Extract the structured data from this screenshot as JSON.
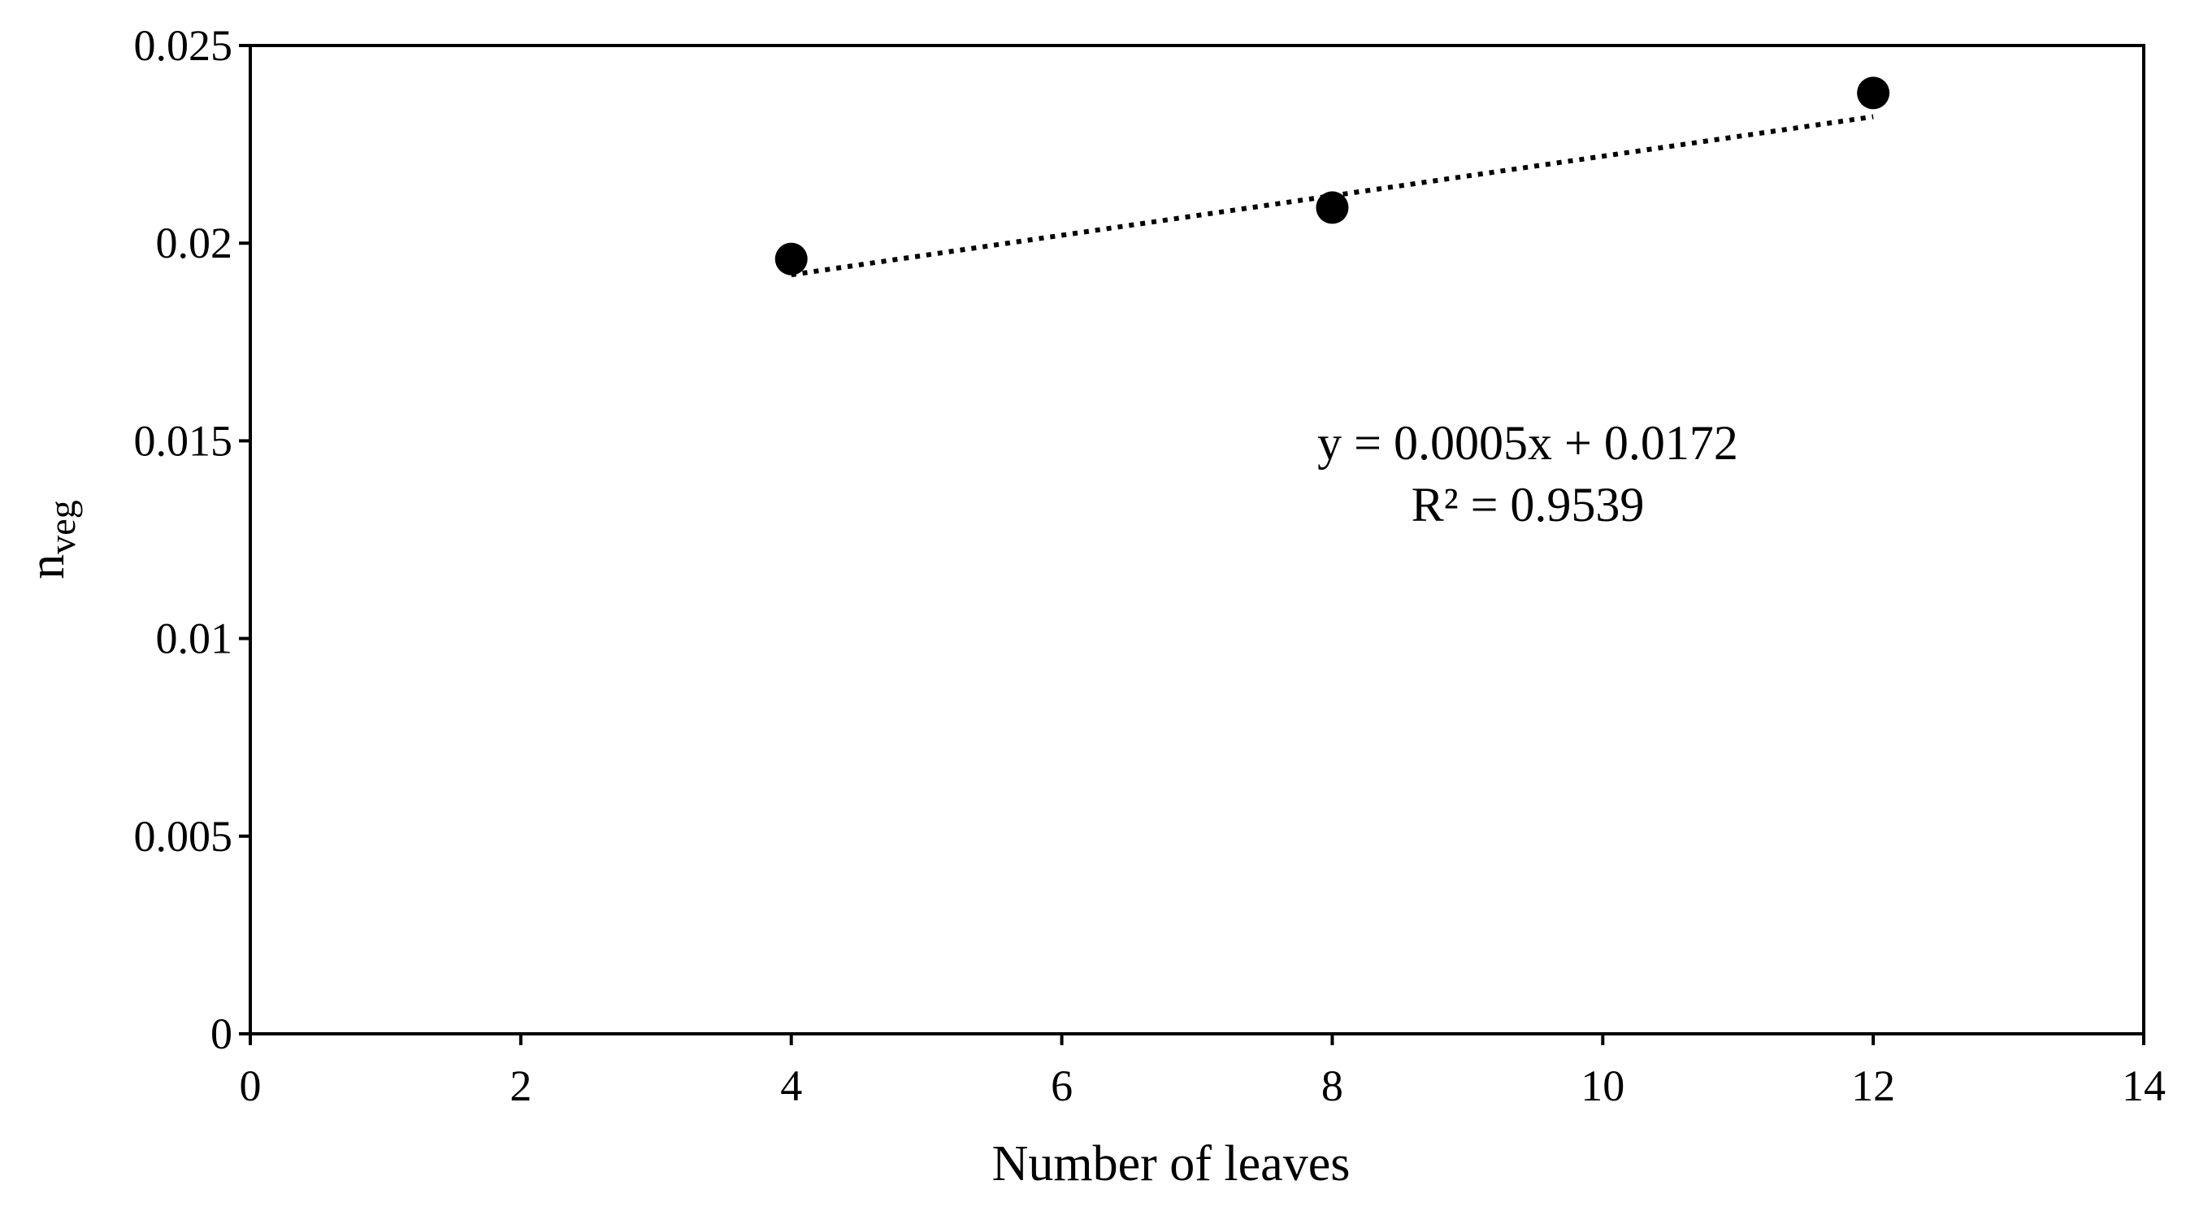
{
  "chart_data": {
    "type": "scatter",
    "xlabel": "Number of leaves",
    "ylabel": {
      "main": "n",
      "subscript": "veg"
    },
    "xlim": [
      0,
      14
    ],
    "ylim": [
      0,
      0.025
    ],
    "xticks": [
      "0",
      "2",
      "4",
      "6",
      "8",
      "10",
      "12",
      "14"
    ],
    "yticks": [
      "0",
      "0.005",
      "0.01",
      "0.015",
      "0.02",
      "0.025"
    ],
    "grid": false,
    "legend": "none",
    "series": [
      {
        "x": [
          4,
          8,
          12
        ],
        "y": [
          0.0196,
          0.0209,
          0.0238
        ],
        "marker": "filled-circle",
        "color": "#000000"
      }
    ],
    "trendline": {
      "type": "linear",
      "style": "dotted",
      "color": "#000000",
      "x_range": [
        4,
        12
      ],
      "slope": 0.0005,
      "intercept": 0.0172
    },
    "annotations": {
      "equation": "y = 0.0005x + 0.0172",
      "r_squared": "R² = 0.9539"
    }
  }
}
